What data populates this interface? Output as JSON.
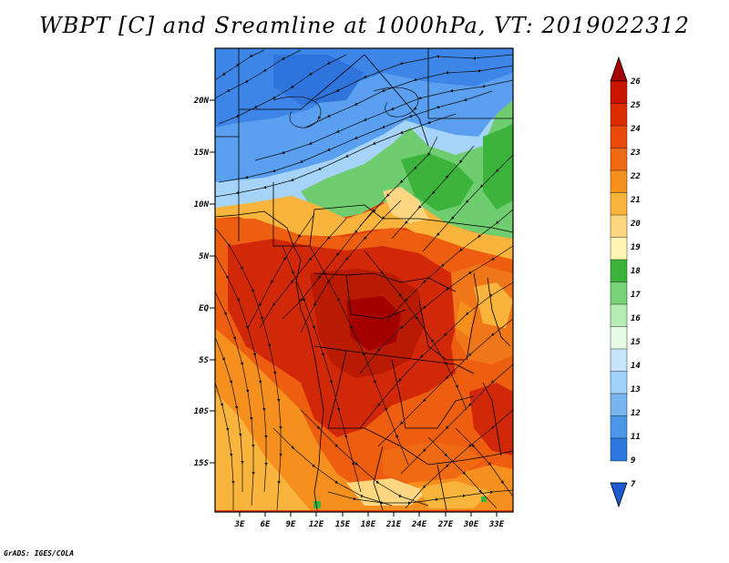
{
  "title": "WBPT [C] and Sreamline at 1000hPa, VT: 2019022312",
  "credit": "GrADS: IGES/COLA",
  "latitude_labels": [
    "20N",
    "15N",
    "10N",
    "5N",
    "EQ",
    "5S",
    "10S",
    "15S"
  ],
  "longitude_labels": [
    "3E",
    "6E",
    "9E",
    "12E",
    "15E",
    "18E",
    "21E",
    "24E",
    "27E",
    "30E",
    "33E"
  ],
  "colorbar": {
    "labels": [
      "26",
      "25",
      "24",
      "23",
      "22",
      "21",
      "20",
      "19",
      "18",
      "17",
      "16",
      "15",
      "14",
      "13",
      "12",
      "11",
      "9",
      "7"
    ],
    "colors": [
      "#a50000",
      "#c81400",
      "#dc2d00",
      "#e94b0c",
      "#f06a14",
      "#f5901e",
      "#f8b43c",
      "#fcd680",
      "#fff6b4",
      "#3cb43c",
      "#78d278",
      "#b4ecb4",
      "#e6fae6",
      "#c8e6fa",
      "#a0d2fa",
      "#78b4f0",
      "#4b96e6",
      "#2d78dc",
      "#1e5ad2"
    ]
  }
}
